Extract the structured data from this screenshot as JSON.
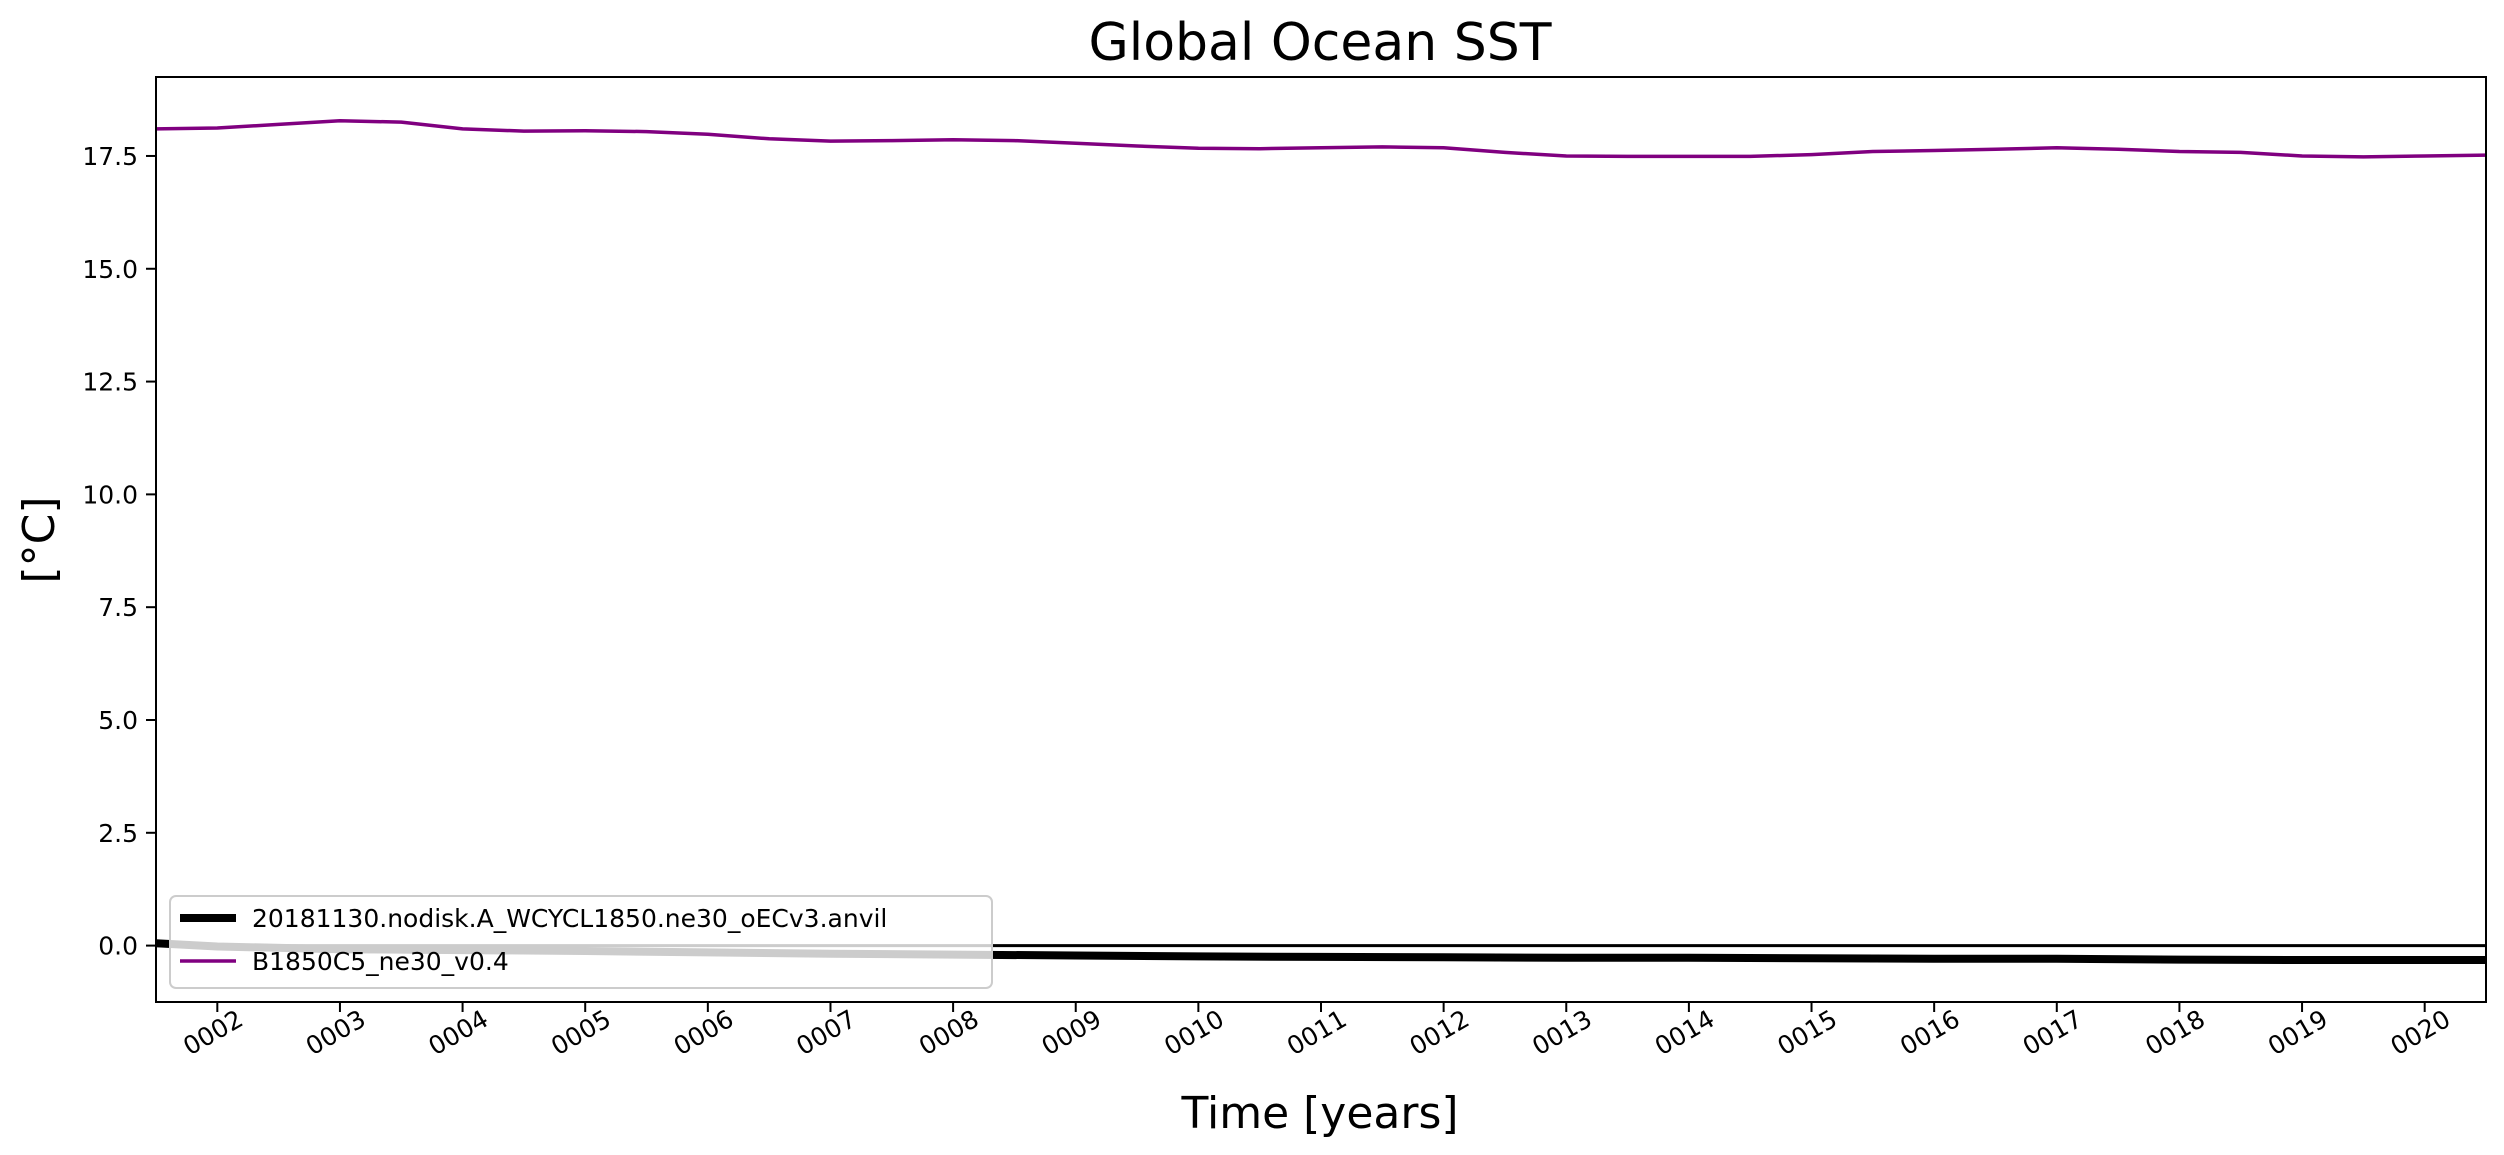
{
  "chart_data": {
    "type": "line",
    "title": "Global Ocean SST",
    "xlabel": "Time [years]",
    "ylabel": "[°C]",
    "xlim": [
      1.5,
      20.5
    ],
    "ylim": [
      -1.25,
      19.25
    ],
    "x_ticks": [
      {
        "value": 2,
        "label": "0002"
      },
      {
        "value": 3,
        "label": "0003"
      },
      {
        "value": 4,
        "label": "0004"
      },
      {
        "value": 5,
        "label": "0005"
      },
      {
        "value": 6,
        "label": "0006"
      },
      {
        "value": 7,
        "label": "0007"
      },
      {
        "value": 8,
        "label": "0008"
      },
      {
        "value": 9,
        "label": "0009"
      },
      {
        "value": 10,
        "label": "0010"
      },
      {
        "value": 11,
        "label": "0011"
      },
      {
        "value": 12,
        "label": "0012"
      },
      {
        "value": 13,
        "label": "0013"
      },
      {
        "value": 14,
        "label": "0014"
      },
      {
        "value": 15,
        "label": "0015"
      },
      {
        "value": 16,
        "label": "0016"
      },
      {
        "value": 17,
        "label": "0017"
      },
      {
        "value": 18,
        "label": "0018"
      },
      {
        "value": 19,
        "label": "0019"
      },
      {
        "value": 20,
        "label": "0020"
      }
    ],
    "y_ticks": [
      {
        "value": 0.0,
        "label": "0.0"
      },
      {
        "value": 2.5,
        "label": "2.5"
      },
      {
        "value": 5.0,
        "label": "5.0"
      },
      {
        "value": 7.5,
        "label": "7.5"
      },
      {
        "value": 10.0,
        "label": "10.0"
      },
      {
        "value": 12.5,
        "label": "12.5"
      },
      {
        "value": 15.0,
        "label": "15.0"
      },
      {
        "value": 17.5,
        "label": "17.5"
      }
    ],
    "grid": false,
    "legend_position": "bottom-left",
    "reference_line": {
      "y": 0.0,
      "color": "#000000"
    },
    "series": [
      {
        "name": "20181130.nodisk.A_WCYCL1850.ne30_oECv3.anvil",
        "color": "#000000",
        "line_width": "thick",
        "x": [
          1.5,
          2.0,
          3.0,
          4.0,
          5.0,
          6.0,
          7.0,
          8.0,
          9.0,
          10.0,
          11.0,
          12.0,
          13.0,
          14.0,
          15.0,
          16.0,
          17.0,
          18.0,
          19.0,
          20.0,
          20.5
        ],
        "y": [
          0.05,
          -0.02,
          -0.08,
          -0.1,
          -0.12,
          -0.15,
          -0.18,
          -0.2,
          -0.22,
          -0.24,
          -0.25,
          -0.26,
          -0.27,
          -0.27,
          -0.28,
          -0.29,
          -0.29,
          -0.31,
          -0.32,
          -0.32,
          -0.32
        ]
      },
      {
        "name": "B1850C5_ne30_v0.4",
        "color": "#800080",
        "line_width": "normal",
        "x": [
          1.5,
          2.0,
          2.5,
          3.0,
          3.5,
          4.0,
          4.5,
          5.0,
          5.5,
          6.0,
          6.5,
          7.0,
          7.5,
          8.0,
          8.5,
          9.0,
          9.5,
          10.0,
          10.5,
          11.0,
          11.5,
          12.0,
          12.5,
          13.0,
          13.5,
          14.0,
          14.5,
          15.0,
          15.5,
          16.0,
          16.5,
          17.0,
          17.5,
          18.0,
          18.5,
          19.0,
          19.5,
          20.0,
          20.5
        ],
        "y": [
          18.1,
          18.12,
          18.2,
          18.28,
          18.25,
          18.1,
          18.05,
          18.06,
          18.04,
          17.98,
          17.88,
          17.83,
          17.84,
          17.86,
          17.84,
          17.78,
          17.72,
          17.67,
          17.66,
          17.68,
          17.7,
          17.68,
          17.58,
          17.5,
          17.49,
          17.49,
          17.49,
          17.53,
          17.6,
          17.62,
          17.65,
          17.68,
          17.65,
          17.6,
          17.58,
          17.5,
          17.48,
          17.5,
          17.52
        ]
      }
    ]
  }
}
